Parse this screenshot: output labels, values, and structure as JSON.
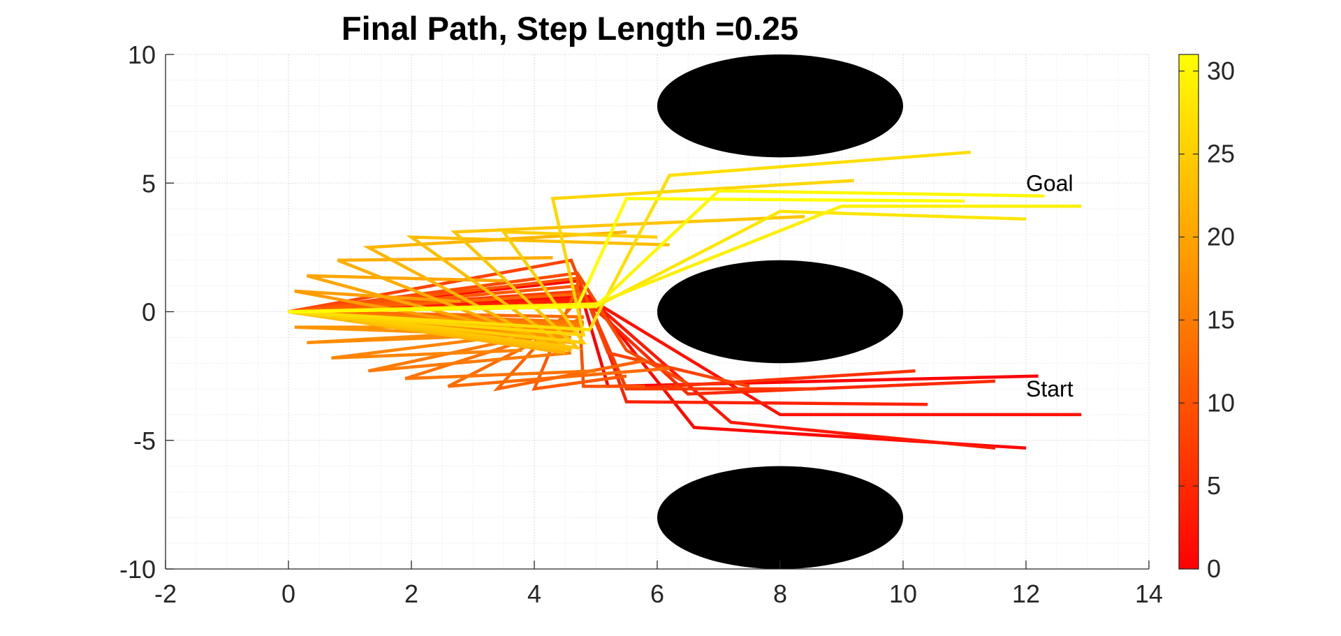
{
  "chart_data": {
    "type": "line",
    "title": "Final Path, Step Length =0.25",
    "xlabel": "",
    "ylabel": "",
    "xlim": [
      -2,
      14
    ],
    "ylim": [
      -10,
      10
    ],
    "xticks": [
      "-2",
      "0",
      "2",
      "4",
      "6",
      "8",
      "10",
      "12",
      "14"
    ],
    "yticks": [
      "-10",
      "-5",
      "0",
      "5",
      "10"
    ],
    "grid": "on (major and minor, dotted light gray)",
    "obstacles": [
      {
        "name": "obstacle",
        "cx": 8,
        "cy": 8,
        "rx": 2,
        "ry": 2,
        "color": "#000000"
      },
      {
        "name": "obstacle",
        "cx": 8,
        "cy": 0,
        "rx": 2,
        "ry": 2,
        "color": "#000000"
      },
      {
        "name": "obstacle",
        "cx": 8,
        "cy": -8,
        "rx": 2,
        "ry": 2,
        "color": "#000000"
      }
    ],
    "annotations": [
      {
        "text": "Goal",
        "x": 12.0,
        "y": 4.7
      },
      {
        "text": "Start",
        "x": 12.0,
        "y": -3.3
      }
    ],
    "colorbar": {
      "colormap": "autumn",
      "range": [
        0,
        31
      ],
      "ticks": [
        "0",
        "5",
        "10",
        "15",
        "20",
        "25",
        "30"
      ],
      "color_low": "#ff0000",
      "color_high": "#ffff00"
    },
    "series": [
      {
        "values": [
          [
            12.2,
            -2.5
          ],
          [
            5.2,
            -2.9
          ],
          [
            4.7,
            1.2
          ],
          [
            0,
            0
          ]
        ]
      },
      {
        "values": [
          [
            12.0,
            -5.3
          ],
          [
            6.6,
            -4.5
          ],
          [
            4.9,
            0.6
          ],
          [
            0,
            0
          ]
        ]
      },
      {
        "values": [
          [
            12.9,
            -4.0
          ],
          [
            8.0,
            -4.0
          ],
          [
            4.9,
            0.5
          ],
          [
            0,
            0
          ]
        ]
      },
      {
        "values": [
          [
            11.5,
            -5.3
          ],
          [
            7.2,
            -4.3
          ],
          [
            4.9,
            0.5
          ],
          [
            0,
            0
          ]
        ]
      },
      {
        "values": [
          [
            10.4,
            -3.6
          ],
          [
            5.5,
            -3.5
          ],
          [
            4.9,
            0.4
          ],
          [
            0,
            0
          ]
        ]
      },
      {
        "values": [
          [
            11.5,
            -2.7
          ],
          [
            6.5,
            -3.2
          ],
          [
            4.9,
            0.3
          ],
          [
            0,
            0
          ]
        ]
      },
      {
        "values": [
          [
            10.2,
            -2.3
          ],
          [
            5.5,
            -3.0
          ],
          [
            4.9,
            0.2
          ],
          [
            0,
            0
          ]
        ]
      },
      {
        "values": [
          [
            8.6,
            -3.0
          ],
          [
            5.5,
            -3.0
          ],
          [
            4.8,
            0.8
          ],
          [
            0,
            0
          ]
        ]
      },
      {
        "values": [
          [
            7.5,
            -2.9
          ],
          [
            5.2,
            -1.6
          ],
          [
            4.6,
            2.0
          ],
          [
            0,
            0
          ]
        ]
      },
      {
        "values": [
          [
            6.5,
            -2.8
          ],
          [
            5.5,
            -1.5
          ],
          [
            4.7,
            1.5
          ],
          [
            0,
            0
          ]
        ]
      },
      {
        "values": [
          [
            5.8,
            -2.9
          ],
          [
            4.8,
            -2.9
          ],
          [
            4.7,
            1.3
          ],
          [
            0,
            0
          ]
        ]
      },
      {
        "values": [
          [
            5.5,
            -2.5
          ],
          [
            4.0,
            -3.0
          ],
          [
            4.7,
            1.0
          ],
          [
            0,
            0
          ]
        ]
      },
      {
        "values": [
          [
            5.8,
            -1.9
          ],
          [
            3.4,
            -3.0
          ],
          [
            4.8,
            0.7
          ],
          [
            0,
            0
          ]
        ]
      },
      {
        "values": [
          [
            6.2,
            -2.2
          ],
          [
            2.6,
            -2.9
          ],
          [
            4.8,
            -0.2
          ],
          [
            0,
            0
          ]
        ]
      },
      {
        "values": [
          [
            5.0,
            -2.3
          ],
          [
            1.9,
            -2.6
          ],
          [
            4.8,
            -0.4
          ],
          [
            0,
            0
          ]
        ]
      },
      {
        "values": [
          [
            4.6,
            -1.6
          ],
          [
            1.3,
            -2.3
          ],
          [
            4.8,
            -0.5
          ],
          [
            0,
            0
          ]
        ]
      },
      {
        "values": [
          [
            3.8,
            -1.5
          ],
          [
            0.7,
            -1.8
          ],
          [
            4.7,
            -0.6
          ],
          [
            0,
            0
          ]
        ]
      },
      {
        "values": [
          [
            2.5,
            -0.9
          ],
          [
            0.3,
            -1.2
          ],
          [
            4.7,
            -0.8
          ],
          [
            0,
            0
          ]
        ]
      },
      {
        "values": [
          [
            2.0,
            -0.6
          ],
          [
            0.1,
            -0.6
          ],
          [
            4.6,
            -1.0
          ],
          [
            0,
            0
          ]
        ]
      },
      {
        "values": [
          [
            2.8,
            0.4
          ],
          [
            0.1,
            0.8
          ],
          [
            4.6,
            -1.2
          ],
          [
            0,
            0
          ]
        ]
      },
      {
        "values": [
          [
            3.5,
            1.2
          ],
          [
            0.3,
            1.4
          ],
          [
            4.6,
            -1.4
          ],
          [
            0,
            0
          ]
        ]
      },
      {
        "values": [
          [
            4.3,
            2.1
          ],
          [
            0.8,
            2.0
          ],
          [
            4.5,
            -1.5
          ],
          [
            0,
            0
          ]
        ]
      },
      {
        "values": [
          [
            5.5,
            3.1
          ],
          [
            1.3,
            2.5
          ],
          [
            4.5,
            -1.6
          ],
          [
            0,
            0
          ]
        ]
      },
      {
        "values": [
          [
            6.2,
            2.6
          ],
          [
            2.0,
            2.9
          ],
          [
            4.6,
            -1.5
          ],
          [
            0,
            0
          ]
        ]
      },
      {
        "values": [
          [
            8.4,
            3.7
          ],
          [
            2.7,
            3.1
          ],
          [
            4.7,
            -1.4
          ],
          [
            0,
            0
          ]
        ]
      },
      {
        "values": [
          [
            6.0,
            2.9
          ],
          [
            3.5,
            3.1
          ],
          [
            4.8,
            -1.2
          ],
          [
            0,
            0
          ]
        ]
      },
      {
        "values": [
          [
            9.2,
            5.1
          ],
          [
            4.3,
            4.4
          ],
          [
            4.8,
            -0.9
          ],
          [
            0,
            0
          ]
        ]
      },
      {
        "values": [
          [
            11.1,
            6.2
          ],
          [
            6.2,
            5.3
          ],
          [
            4.9,
            -0.7
          ],
          [
            0,
            0
          ]
        ]
      },
      {
        "values": [
          [
            12.0,
            3.6
          ],
          [
            8.0,
            3.9
          ],
          [
            5.0,
            0.2
          ],
          [
            0,
            0
          ]
        ]
      },
      {
        "values": [
          [
            12.9,
            4.1
          ],
          [
            9.0,
            4.1
          ],
          [
            5.0,
            0.3
          ],
          [
            0,
            0
          ]
        ]
      },
      {
        "values": [
          [
            12.3,
            4.5
          ],
          [
            7.0,
            4.7
          ],
          [
            5.0,
            0.2
          ],
          [
            0,
            0
          ]
        ]
      },
      {
        "values": [
          [
            11.0,
            4.3
          ],
          [
            5.5,
            4.4
          ],
          [
            4.7,
            0.2
          ],
          [
            0,
            0
          ]
        ]
      }
    ]
  }
}
